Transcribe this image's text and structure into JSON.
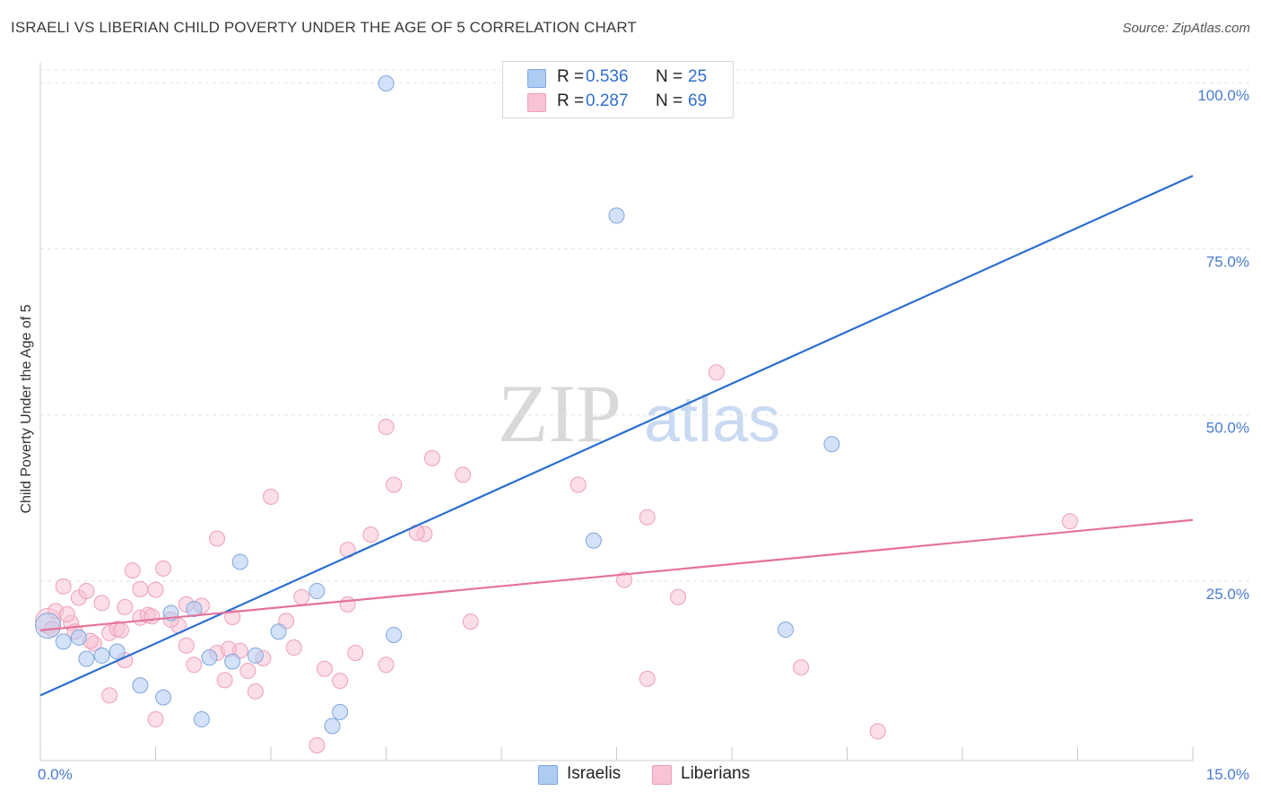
{
  "title": "ISRAELI VS LIBERIAN CHILD POVERTY UNDER THE AGE OF 5 CORRELATION CHART",
  "source": "Source: ZipAtlas.com",
  "watermark": {
    "zip": "ZIP",
    "atlas": "atlas"
  },
  "legend": {
    "israelis": {
      "r_label": "R =",
      "r_value": "0.536",
      "n_label": "N =",
      "n_value": "25"
    },
    "liberians": {
      "r_label": "R =",
      "r_value": "0.287",
      "n_label": "N =",
      "n_value": "69"
    }
  },
  "bottom_legend": {
    "israelis": "Israelis",
    "liberians": "Liberians"
  },
  "colors": {
    "israelis_fill": "#aecbf2",
    "israelis_stroke": "#7fa6dd",
    "israelis_line": "#2a6fd0",
    "liberians_fill": "#f8c3d3",
    "liberians_stroke": "#ef9fb8",
    "liberians_line": "#e5729a",
    "tick_text": "#4a7bd0",
    "grid": "#e3e3e3"
  },
  "chart_data": {
    "type": "scatter",
    "title": "ISRAELI VS LIBERIAN CHILD POVERTY UNDER THE AGE OF 5 CORRELATION CHART",
    "xlabel": "",
    "ylabel": "Child Poverty Under the Age of 5",
    "xlim": [
      0,
      15
    ],
    "ylim": [
      -2,
      103
    ],
    "x_tick_labels": [
      "0.0%",
      "15.0%"
    ],
    "y_ticks": [
      25,
      50,
      75,
      100
    ],
    "y_tick_labels": [
      "25.0%",
      "50.0%",
      "75.0%",
      "100.0%"
    ],
    "series": [
      {
        "name": "Israelis",
        "trend": {
          "x": [
            0,
            15
          ],
          "y": [
            7.8,
            86.0
          ]
        },
        "points": [
          {
            "x": 0.1,
            "y": 18.3,
            "big": true
          },
          {
            "x": 0.3,
            "y": 15.9
          },
          {
            "x": 0.6,
            "y": 13.3
          },
          {
            "x": 0.8,
            "y": 13.8
          },
          {
            "x": 1.0,
            "y": 14.4
          },
          {
            "x": 1.3,
            "y": 9.3
          },
          {
            "x": 1.6,
            "y": 7.5
          },
          {
            "x": 1.7,
            "y": 20.2
          },
          {
            "x": 2.0,
            "y": 20.8
          },
          {
            "x": 2.1,
            "y": 4.2
          },
          {
            "x": 2.5,
            "y": 12.9
          },
          {
            "x": 2.6,
            "y": 27.9
          },
          {
            "x": 2.8,
            "y": 13.8
          },
          {
            "x": 3.1,
            "y": 17.4
          },
          {
            "x": 3.6,
            "y": 23.5
          },
          {
            "x": 3.8,
            "y": 3.2
          },
          {
            "x": 3.9,
            "y": 5.3
          },
          {
            "x": 4.5,
            "y": 99.9
          },
          {
            "x": 4.6,
            "y": 16.9
          },
          {
            "x": 7.2,
            "y": 31.1
          },
          {
            "x": 7.5,
            "y": 80.0
          },
          {
            "x": 9.7,
            "y": 17.7
          },
          {
            "x": 10.3,
            "y": 45.6
          },
          {
            "x": 0.5,
            "y": 16.5
          },
          {
            "x": 2.2,
            "y": 13.5
          }
        ]
      },
      {
        "name": "Liberians",
        "trend": {
          "x": [
            0,
            15
          ],
          "y": [
            17.6,
            34.2
          ]
        },
        "points": [
          {
            "x": 0.1,
            "y": 19.0,
            "big": true
          },
          {
            "x": 0.2,
            "y": 20.5
          },
          {
            "x": 0.3,
            "y": 24.2
          },
          {
            "x": 0.4,
            "y": 18.7
          },
          {
            "x": 0.5,
            "y": 22.5
          },
          {
            "x": 0.6,
            "y": 23.5
          },
          {
            "x": 0.7,
            "y": 15.6
          },
          {
            "x": 0.8,
            "y": 21.7
          },
          {
            "x": 0.9,
            "y": 17.2
          },
          {
            "x": 0.9,
            "y": 7.8
          },
          {
            "x": 1.0,
            "y": 17.8
          },
          {
            "x": 1.1,
            "y": 21.1
          },
          {
            "x": 1.1,
            "y": 13.1
          },
          {
            "x": 1.2,
            "y": 26.6
          },
          {
            "x": 1.3,
            "y": 23.8
          },
          {
            "x": 1.3,
            "y": 19.5
          },
          {
            "x": 1.4,
            "y": 19.9
          },
          {
            "x": 1.5,
            "y": 23.7
          },
          {
            "x": 1.5,
            "y": 4.2
          },
          {
            "x": 1.6,
            "y": 26.9
          },
          {
            "x": 1.8,
            "y": 18.3
          },
          {
            "x": 1.9,
            "y": 15.3
          },
          {
            "x": 1.9,
            "y": 21.5
          },
          {
            "x": 2.0,
            "y": 12.4
          },
          {
            "x": 2.3,
            "y": 14.2
          },
          {
            "x": 2.3,
            "y": 31.4
          },
          {
            "x": 2.4,
            "y": 10.1
          },
          {
            "x": 2.5,
            "y": 19.6
          },
          {
            "x": 2.6,
            "y": 14.5
          },
          {
            "x": 2.8,
            "y": 8.4
          },
          {
            "x": 2.9,
            "y": 13.4
          },
          {
            "x": 3.0,
            "y": 37.7
          },
          {
            "x": 3.2,
            "y": 19.0
          },
          {
            "x": 3.4,
            "y": 22.6
          },
          {
            "x": 3.6,
            "y": 0.3
          },
          {
            "x": 3.7,
            "y": 11.8
          },
          {
            "x": 3.9,
            "y": 10.0
          },
          {
            "x": 4.0,
            "y": 29.7
          },
          {
            "x": 4.0,
            "y": 21.5
          },
          {
            "x": 4.1,
            "y": 14.2
          },
          {
            "x": 4.3,
            "y": 32.0
          },
          {
            "x": 4.5,
            "y": 48.2
          },
          {
            "x": 4.5,
            "y": 12.4
          },
          {
            "x": 4.6,
            "y": 39.5
          },
          {
            "x": 5.0,
            "y": 32.1
          },
          {
            "x": 5.1,
            "y": 43.5
          },
          {
            "x": 5.5,
            "y": 41.0
          },
          {
            "x": 5.6,
            "y": 18.9
          },
          {
            "x": 7.0,
            "y": 39.5
          },
          {
            "x": 7.6,
            "y": 25.2
          },
          {
            "x": 7.9,
            "y": 34.6
          },
          {
            "x": 7.9,
            "y": 10.3
          },
          {
            "x": 8.3,
            "y": 22.6
          },
          {
            "x": 8.8,
            "y": 56.4
          },
          {
            "x": 9.9,
            "y": 12.0
          },
          {
            "x": 10.9,
            "y": 2.4
          },
          {
            "x": 13.4,
            "y": 34.0
          },
          {
            "x": 0.15,
            "y": 17.8
          },
          {
            "x": 0.35,
            "y": 20.0
          },
          {
            "x": 0.65,
            "y": 16.0
          },
          {
            "x": 1.05,
            "y": 17.6
          },
          {
            "x": 1.7,
            "y": 19.2
          },
          {
            "x": 2.1,
            "y": 21.3
          },
          {
            "x": 2.7,
            "y": 11.5
          },
          {
            "x": 3.3,
            "y": 15.0
          },
          {
            "x": 4.9,
            "y": 32.3
          },
          {
            "x": 0.45,
            "y": 17.4
          },
          {
            "x": 1.45,
            "y": 19.7
          },
          {
            "x": 2.45,
            "y": 14.8
          }
        ]
      }
    ]
  }
}
